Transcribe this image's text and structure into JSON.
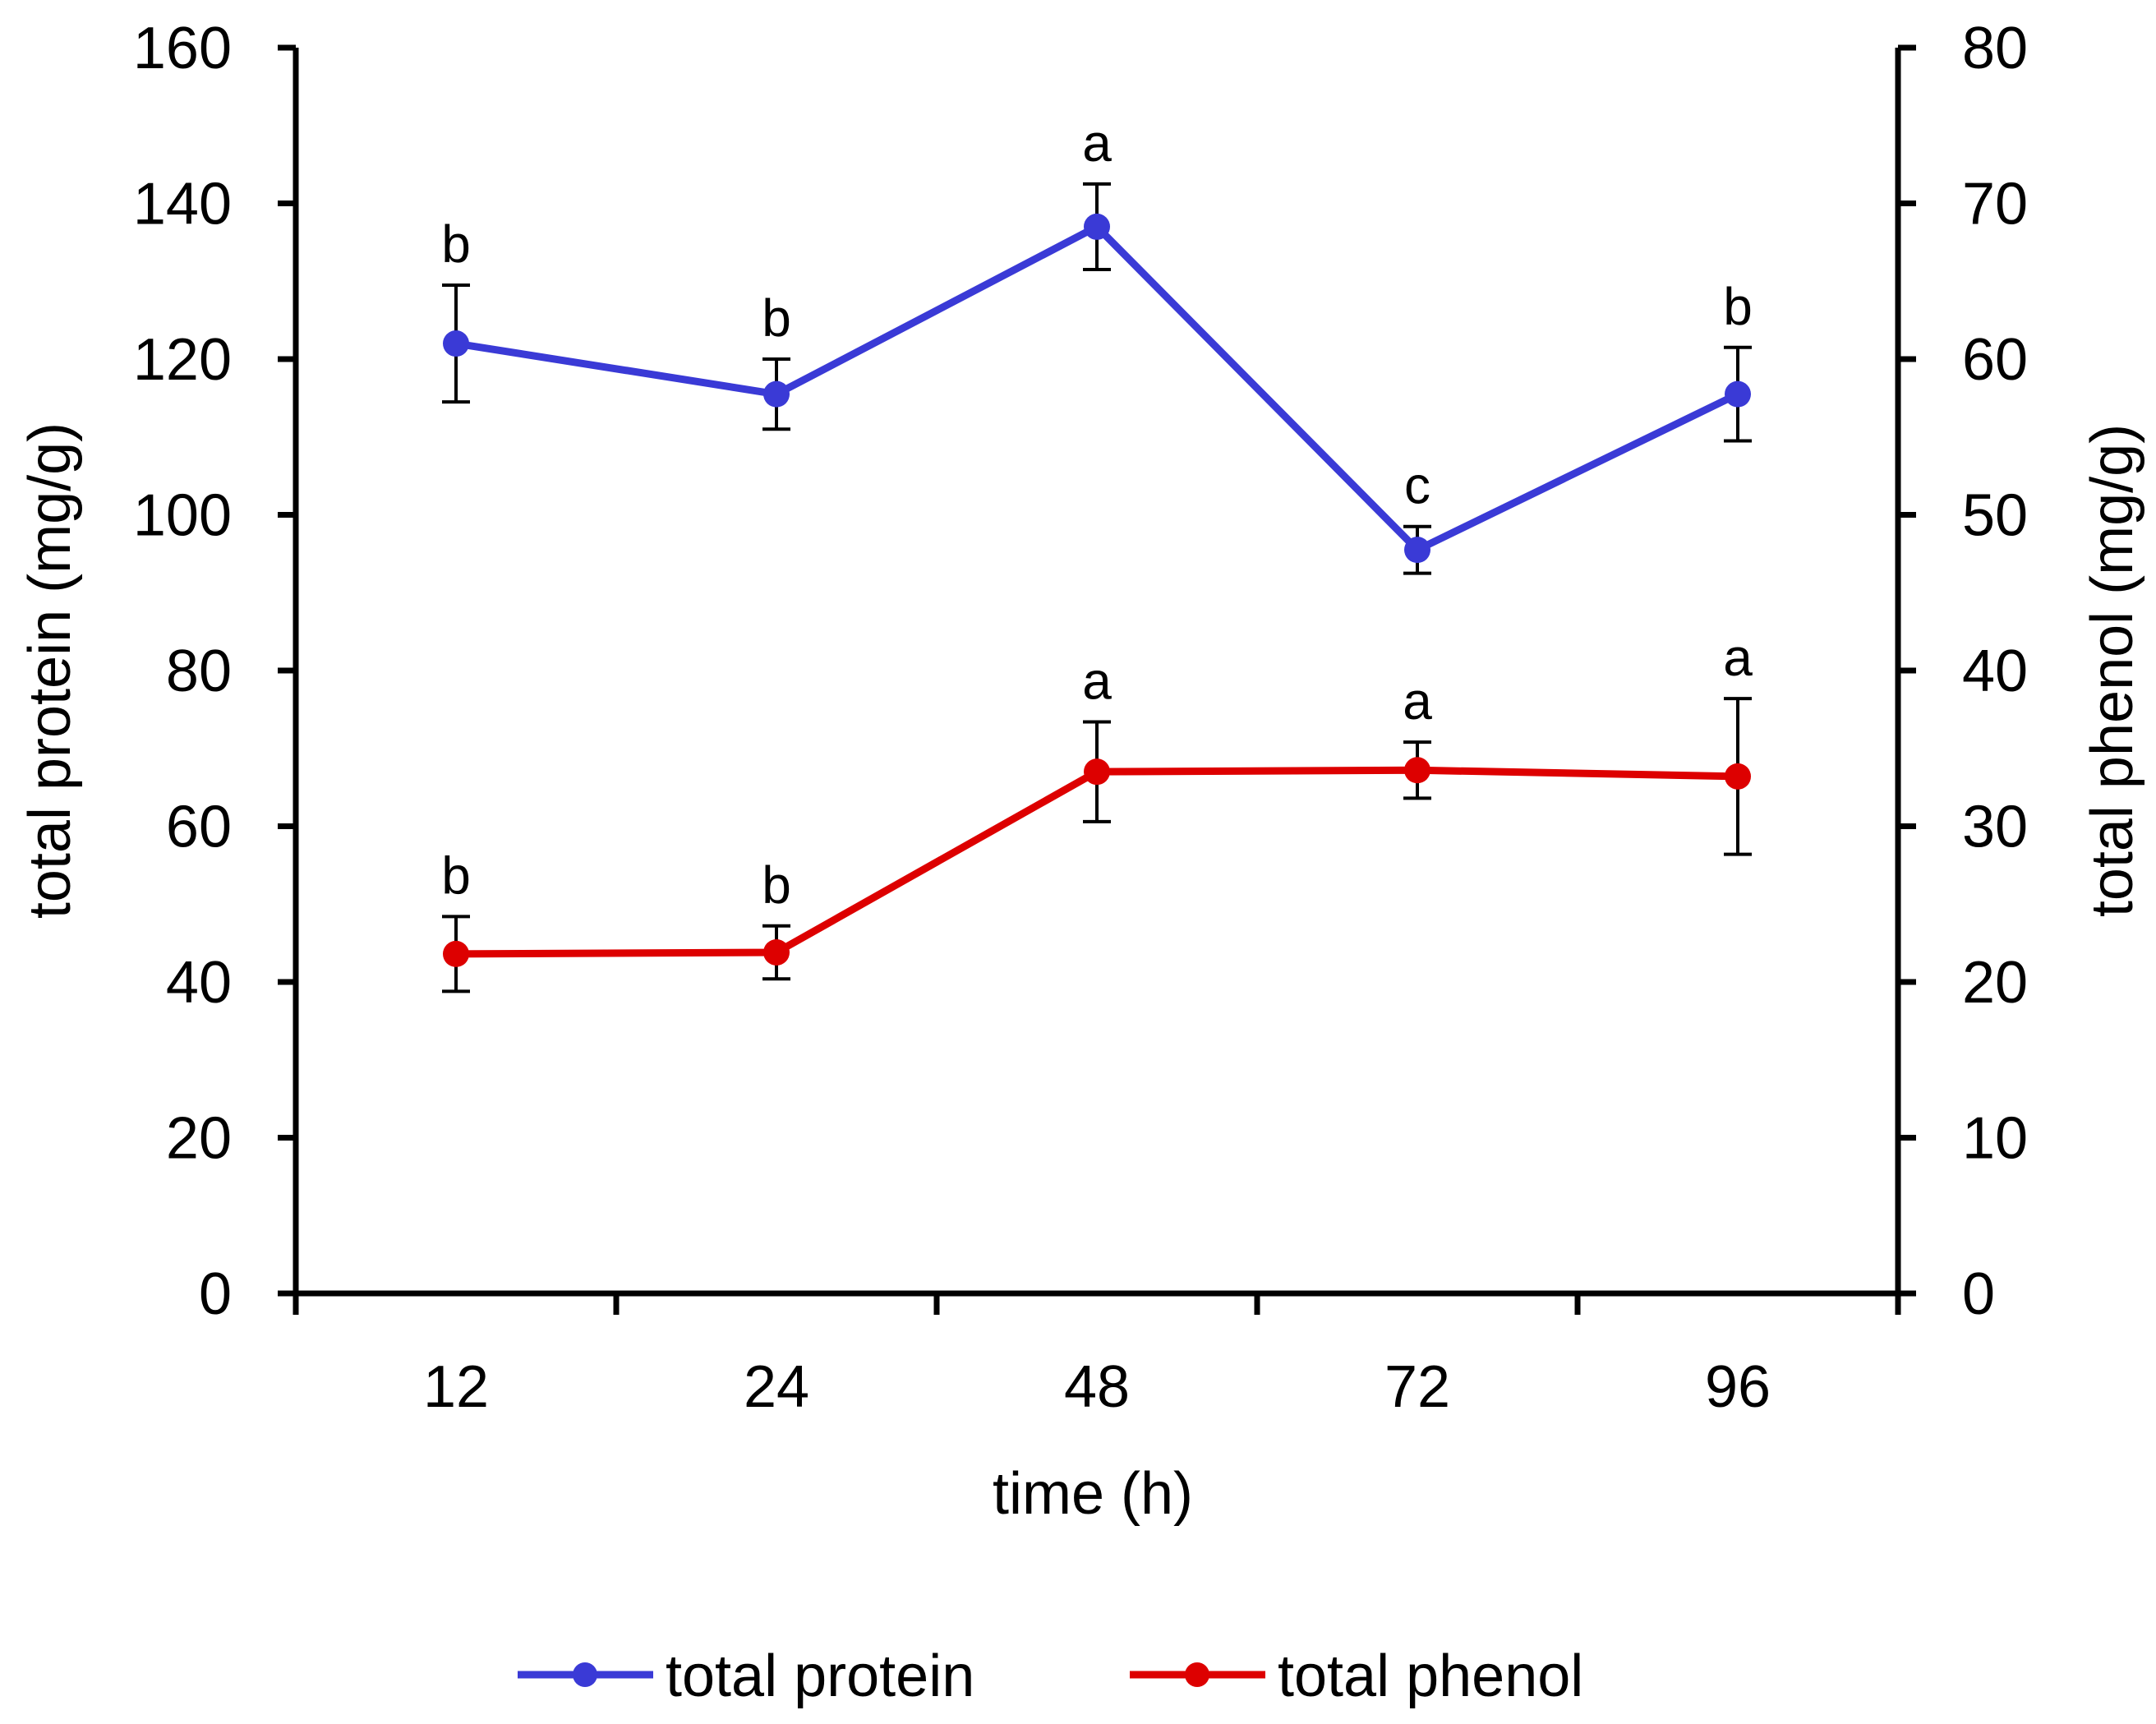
{
  "chart_data": {
    "type": "line",
    "categories": [
      "12",
      "24",
      "48",
      "72",
      "96"
    ],
    "xlabel": "time (h)",
    "ylabel_left": "total protein  (mg/g)",
    "ylabel_right": "total phenol  (mg/g)",
    "ylim_left": [
      0,
      160
    ],
    "ylim_right": [
      0,
      80
    ],
    "yticks_left": [
      "0",
      "20",
      "40",
      "60",
      "80",
      "100",
      "120",
      "140",
      "160"
    ],
    "yticks_right": [
      "0",
      "10",
      "20",
      "30",
      "40",
      "50",
      "60",
      "70",
      "80"
    ],
    "grid": false,
    "legend_position": "bottom",
    "series": [
      {
        "name": "total protein",
        "axis": "left",
        "color": "#3a3ad6",
        "values": [
          122,
          115.5,
          137,
          95.5,
          115.5
        ],
        "error": [
          7.5,
          4.5,
          5.5,
          3,
          6
        ],
        "letters": [
          "b",
          "b",
          "a",
          "c",
          "b"
        ]
      },
      {
        "name": "total phenol",
        "axis": "right",
        "color": "#dd0000",
        "values": [
          21.8,
          21.9,
          33.5,
          33.6,
          33.2
        ],
        "error": [
          2.4,
          1.7,
          3.2,
          1.8,
          5.0
        ],
        "letters": [
          "b",
          "b",
          "a",
          "a",
          "a"
        ]
      }
    ]
  }
}
